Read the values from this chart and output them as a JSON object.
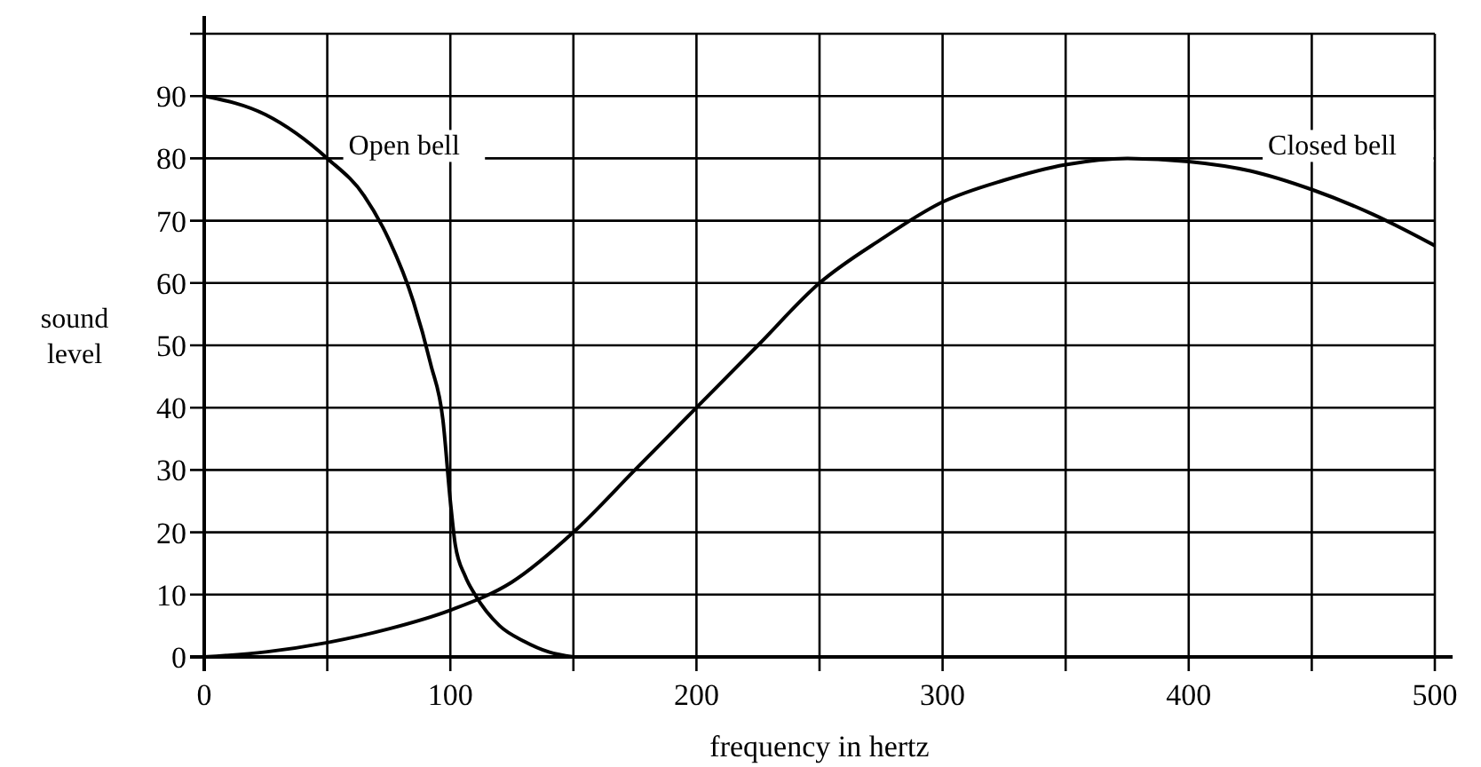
{
  "chart_data": {
    "type": "line",
    "xlabel": "frequency in hertz",
    "ylabel": "sound\nlevel",
    "xlim": [
      0,
      500
    ],
    "ylim": [
      0,
      100
    ],
    "xticks": [
      0,
      {
        "value": 50,
        "label": null
      },
      100,
      {
        "value": 150,
        "label": null
      },
      200,
      {
        "value": 250,
        "label": null
      },
      300,
      {
        "value": 350,
        "label": null
      },
      400,
      {
        "value": 450,
        "label": null
      },
      500
    ],
    "yticks": [
      0,
      10,
      20,
      30,
      40,
      50,
      60,
      70,
      80,
      90,
      {
        "value": 100,
        "label": null
      }
    ],
    "grid": true,
    "line_style": "solid",
    "series": [
      {
        "name": "Open bell",
        "color": "#000000",
        "x": [
          0,
          25,
          50,
          65,
          75,
          85,
          92,
          97,
          100,
          102,
          106,
          110,
          120,
          130,
          140,
          150
        ],
        "values": [
          90,
          87,
          80,
          74,
          67,
          57,
          47,
          38,
          25,
          18,
          13,
          10,
          5,
          2.5,
          0.8,
          0
        ]
      },
      {
        "name": "Closed bell",
        "color": "#000000",
        "x": [
          0,
          25,
          50,
          75,
          100,
          125,
          150,
          175,
          200,
          225,
          250,
          275,
          300,
          325,
          350,
          375,
          400,
          425,
          450,
          475,
          500
        ],
        "values": [
          0,
          0.8,
          2.3,
          4.5,
          7.5,
          12,
          20,
          30,
          40,
          50,
          60,
          67,
          73,
          76.5,
          79,
          80,
          79.5,
          78,
          75,
          71,
          66
        ]
      }
    ]
  }
}
